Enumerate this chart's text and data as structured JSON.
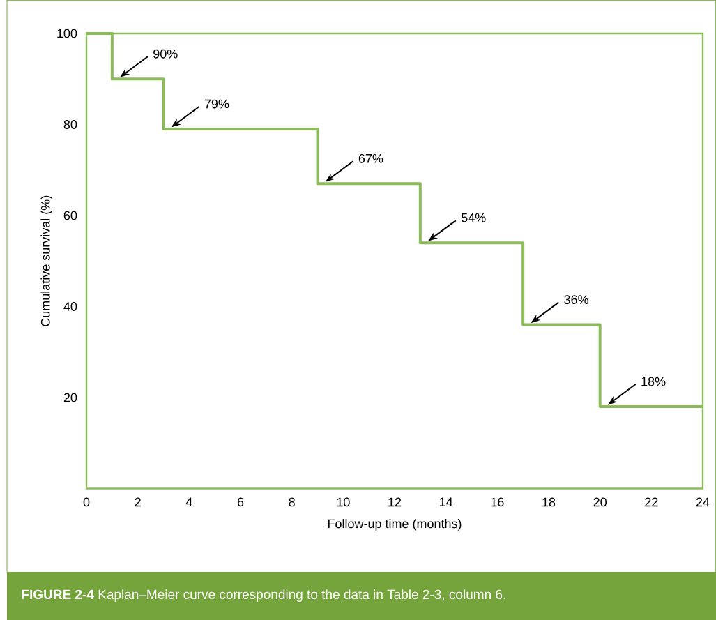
{
  "chart_data": {
    "type": "step",
    "xlabel": "Follow-up time (months)",
    "ylabel": "Cumulative survival (%)",
    "x": [
      0,
      1,
      3,
      9,
      13,
      17,
      20,
      24
    ],
    "series": [
      {
        "color": "#8cbb5a",
        "values": [
          100,
          90,
          79,
          67,
          54,
          36,
          18,
          18
        ]
      }
    ],
    "xlim": [
      0,
      24
    ],
    "ylim": [
      0,
      100
    ],
    "xticks": [
      0,
      2,
      4,
      6,
      8,
      10,
      12,
      14,
      16,
      18,
      20,
      22,
      24
    ],
    "yticks": [
      20,
      40,
      60,
      80,
      100
    ],
    "grid": false,
    "annotations": [
      "90%",
      "79%",
      "67%",
      "54%",
      "36%",
      "18%",
      "**FIGURE 2-4** Kaplan–Meier curve corresponding to the data in Table 2-3, column 6."
    ]
  }
}
